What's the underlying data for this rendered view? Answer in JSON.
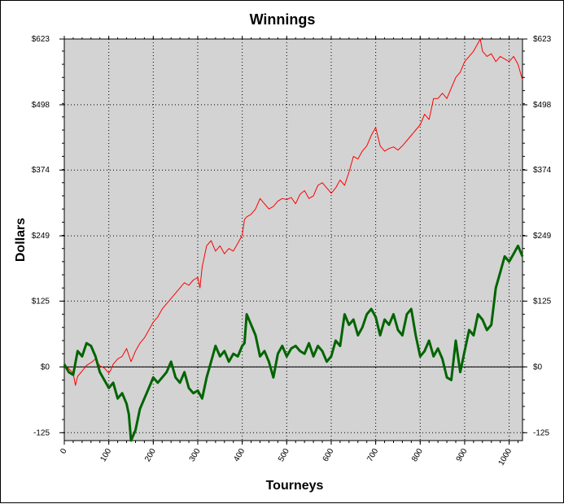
{
  "chart_data": {
    "type": "line",
    "title": "Winnings",
    "xlabel": "Tourneys",
    "ylabel": "Dollars",
    "xlim": [
      0,
      1030
    ],
    "ylim": [
      -140,
      623
    ],
    "x_ticks": [
      0,
      100,
      200,
      300,
      400,
      500,
      600,
      700,
      800,
      900,
      1000
    ],
    "x_tick_labels": [
      "0",
      "100",
      "200",
      "300",
      "400",
      "500",
      "600",
      "700",
      "800",
      "900",
      "1000"
    ],
    "y_ticks": [
      -125,
      0,
      125,
      249,
      374,
      498,
      623
    ],
    "y_tick_labels_left": [
      "-125",
      "$0",
      "$125",
      "$249",
      "$374",
      "$498",
      "$623"
    ],
    "y_tick_labels_right": [
      "-125",
      "$0",
      "$125",
      "$249",
      "$374",
      "$498",
      "$623"
    ],
    "grid": true,
    "plot_background": "#d3d3d3",
    "zero_line": 0,
    "series": [
      {
        "name": "",
        "color": "#ff0000",
        "line_width": 1,
        "x": [
          0,
          10,
          20,
          25,
          30,
          40,
          50,
          60,
          70,
          80,
          90,
          100,
          105,
          110,
          120,
          130,
          140,
          150,
          160,
          170,
          180,
          190,
          200,
          210,
          220,
          230,
          240,
          250,
          260,
          270,
          280,
          290,
          300,
          305,
          310,
          320,
          330,
          340,
          350,
          360,
          370,
          380,
          390,
          400,
          405,
          410,
          420,
          430,
          440,
          450,
          460,
          470,
          480,
          490,
          500,
          510,
          520,
          530,
          540,
          550,
          560,
          570,
          580,
          590,
          600,
          610,
          620,
          630,
          640,
          650,
          660,
          670,
          680,
          690,
          700,
          710,
          720,
          730,
          740,
          750,
          760,
          770,
          780,
          790,
          800,
          810,
          820,
          830,
          840,
          850,
          860,
          870,
          880,
          890,
          900,
          910,
          920,
          930,
          935,
          940,
          950,
          960,
          970,
          980,
          990,
          1000,
          1010,
          1020,
          1030
        ],
        "y": [
          2,
          -3,
          -12,
          -35,
          -18,
          -8,
          3,
          8,
          15,
          2,
          -2,
          -12,
          -5,
          5,
          15,
          20,
          35,
          10,
          30,
          45,
          55,
          70,
          85,
          95,
          110,
          120,
          130,
          140,
          150,
          160,
          155,
          165,
          170,
          150,
          190,
          230,
          240,
          220,
          230,
          215,
          225,
          220,
          235,
          250,
          280,
          285,
          290,
          300,
          320,
          310,
          300,
          305,
          315,
          320,
          318,
          322,
          310,
          328,
          335,
          320,
          325,
          345,
          350,
          340,
          330,
          340,
          355,
          345,
          370,
          400,
          395,
          410,
          420,
          440,
          455,
          420,
          410,
          415,
          418,
          412,
          420,
          430,
          440,
          450,
          460,
          480,
          470,
          510,
          510,
          520,
          510,
          530,
          550,
          560,
          580,
          590,
          600,
          615,
          623,
          600,
          590,
          595,
          580,
          590,
          585,
          580,
          590,
          575,
          545
        ]
      },
      {
        "name": "",
        "color": "#006400",
        "line_width": 3,
        "x": [
          0,
          10,
          20,
          30,
          40,
          50,
          60,
          70,
          80,
          90,
          100,
          110,
          120,
          130,
          140,
          145,
          150,
          160,
          170,
          180,
          190,
          200,
          210,
          220,
          230,
          240,
          250,
          260,
          270,
          280,
          290,
          300,
          310,
          320,
          330,
          340,
          350,
          360,
          370,
          380,
          390,
          400,
          405,
          410,
          420,
          430,
          440,
          450,
          460,
          470,
          480,
          490,
          500,
          510,
          520,
          530,
          540,
          550,
          560,
          570,
          580,
          590,
          600,
          610,
          620,
          630,
          640,
          650,
          660,
          670,
          680,
          690,
          700,
          710,
          720,
          730,
          740,
          750,
          760,
          770,
          780,
          790,
          800,
          810,
          820,
          830,
          840,
          850,
          860,
          870,
          880,
          890,
          900,
          910,
          920,
          930,
          940,
          950,
          960,
          970,
          980,
          990,
          1000,
          1010,
          1020,
          1030
        ],
        "y": [
          5,
          -10,
          -15,
          30,
          20,
          45,
          40,
          20,
          -10,
          -25,
          -40,
          -30,
          -60,
          -50,
          -70,
          -90,
          -140,
          -120,
          -80,
          -60,
          -40,
          -20,
          -30,
          -20,
          -10,
          10,
          -20,
          -30,
          -10,
          -40,
          -50,
          -45,
          -60,
          -20,
          10,
          40,
          20,
          30,
          10,
          25,
          20,
          40,
          45,
          100,
          80,
          60,
          20,
          30,
          10,
          -20,
          25,
          40,
          20,
          35,
          40,
          30,
          25,
          45,
          20,
          40,
          30,
          10,
          20,
          50,
          40,
          100,
          80,
          90,
          60,
          75,
          100,
          110,
          95,
          60,
          90,
          80,
          100,
          70,
          60,
          100,
          110,
          60,
          20,
          30,
          50,
          20,
          35,
          15,
          -20,
          -25,
          50,
          -10,
          30,
          70,
          60,
          100,
          90,
          70,
          80,
          150,
          180,
          210,
          200,
          215,
          230,
          210
        ]
      }
    ]
  }
}
